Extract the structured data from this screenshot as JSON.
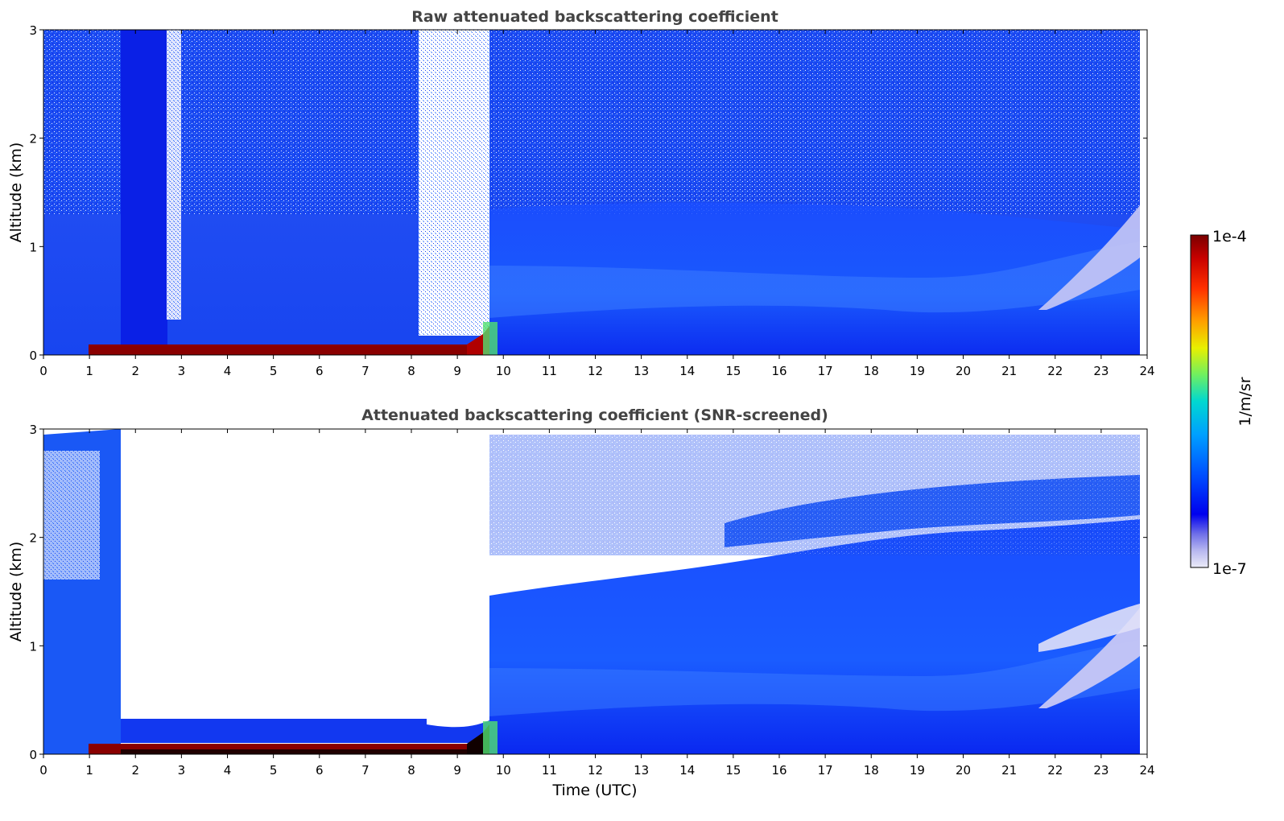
{
  "chart_data": [
    {
      "type": "heatmap",
      "title": "Raw attenuated backscattering coefficient",
      "xlabel": "",
      "ylabel": "Altitude (km)",
      "xlim": [
        0,
        24
      ],
      "ylim": [
        0,
        3
      ],
      "xticks": [
        "0",
        "1",
        "2",
        "3",
        "4",
        "5",
        "6",
        "7",
        "8",
        "9",
        "10",
        "11",
        "12",
        "13",
        "14",
        "15",
        "16",
        "17",
        "18",
        "19",
        "20",
        "21",
        "22",
        "23",
        "24"
      ],
      "yticks": [
        "0",
        "1",
        "2",
        "3"
      ],
      "scale": "log",
      "features": [
        {
          "label": "surface layer",
          "x": [
            0.5,
            9.7
          ],
          "y": [
            0.0,
            0.15
          ],
          "level": "max"
        },
        {
          "label": "noisy region",
          "x": [
            8.2,
            9.7
          ],
          "y": [
            0.15,
            3.0
          ],
          "level": "missing"
        },
        {
          "label": "boundary layer",
          "x": [
            9.7,
            23.8
          ],
          "y": [
            0.0,
            1.6
          ],
          "level": "mid"
        },
        {
          "label": "cloud",
          "x": [
            21.5,
            23.8
          ],
          "y": [
            0.3,
            1.3
          ],
          "level": "missing"
        }
      ]
    },
    {
      "type": "heatmap",
      "title": "Attenuated backscattering coefficient (SNR-screened)",
      "xlabel": "Time (UTC)",
      "ylabel": "Altitude (km)",
      "xlim": [
        0,
        24
      ],
      "ylim": [
        0,
        3
      ],
      "xticks": [
        "0",
        "1",
        "2",
        "3",
        "4",
        "5",
        "6",
        "7",
        "8",
        "9",
        "10",
        "11",
        "12",
        "13",
        "14",
        "15",
        "16",
        "17",
        "18",
        "19",
        "20",
        "21",
        "22",
        "23",
        "24"
      ],
      "yticks": [
        "0",
        "1",
        "2",
        "3"
      ],
      "scale": "log",
      "features": [
        {
          "label": "screened region",
          "x": [
            1.65,
            9.65
          ],
          "y": [
            0.35,
            3.0
          ],
          "level": "missing"
        },
        {
          "label": "surface layer",
          "x": [
            0.5,
            9.7
          ],
          "y": [
            0.0,
            0.15
          ],
          "level": "max"
        },
        {
          "label": "boundary layer top",
          "x": [
            9.7,
            23.8
          ],
          "y": [
            1.5,
            2.2
          ],
          "level": "mid"
        },
        {
          "label": "cloud",
          "x": [
            21.5,
            23.8
          ],
          "y": [
            0.4,
            1.3
          ],
          "level": "missing"
        }
      ]
    }
  ],
  "colorbar": {
    "label": "1/m/sr",
    "max_label": "1e-4",
    "min_label": "1e-7",
    "colors": [
      "#e8e8f8",
      "#b8b8f0",
      "#8888e8",
      "#4040e8",
      "#0000ee",
      "#0030ff",
      "#0070ff",
      "#00a0ff",
      "#00d0e8",
      "#30e0a0",
      "#80f050",
      "#c0f020",
      "#ffe000",
      "#ffa000",
      "#ff6000",
      "#ff2000",
      "#e00000",
      "#a00000",
      "#7a0000"
    ]
  }
}
